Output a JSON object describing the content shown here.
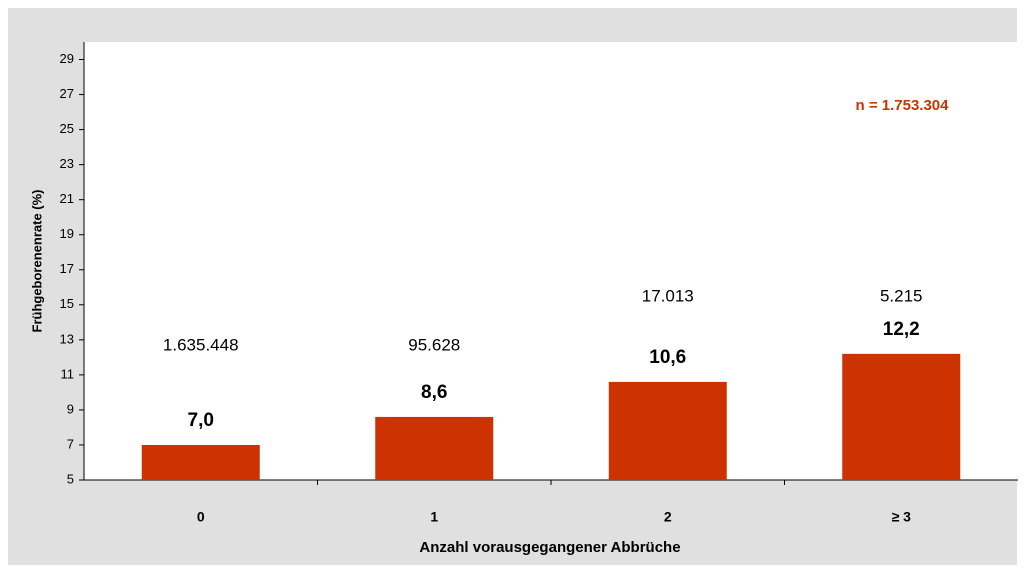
{
  "chart_data": {
    "type": "bar",
    "x_label": "Anzahl vorausgegangener Abbrüche",
    "y_label": "Frühgeborenenrate (%)",
    "annotation": "n = 1.753.304",
    "categories": [
      "0",
      "1",
      "2",
      "≥ 3"
    ],
    "values": [
      7.0,
      8.6,
      10.6,
      12.2
    ],
    "value_labels": [
      "7,0",
      "8,6",
      "10,6",
      "12,2"
    ],
    "count_labels": [
      "1.635.448",
      "95.628",
      "17.013",
      "5.215"
    ],
    "color": "#cc3300",
    "ylim": [
      5,
      30
    ],
    "yticks": [
      5,
      7,
      9,
      11,
      13,
      15,
      17,
      19,
      21,
      23,
      25,
      27,
      29
    ]
  }
}
